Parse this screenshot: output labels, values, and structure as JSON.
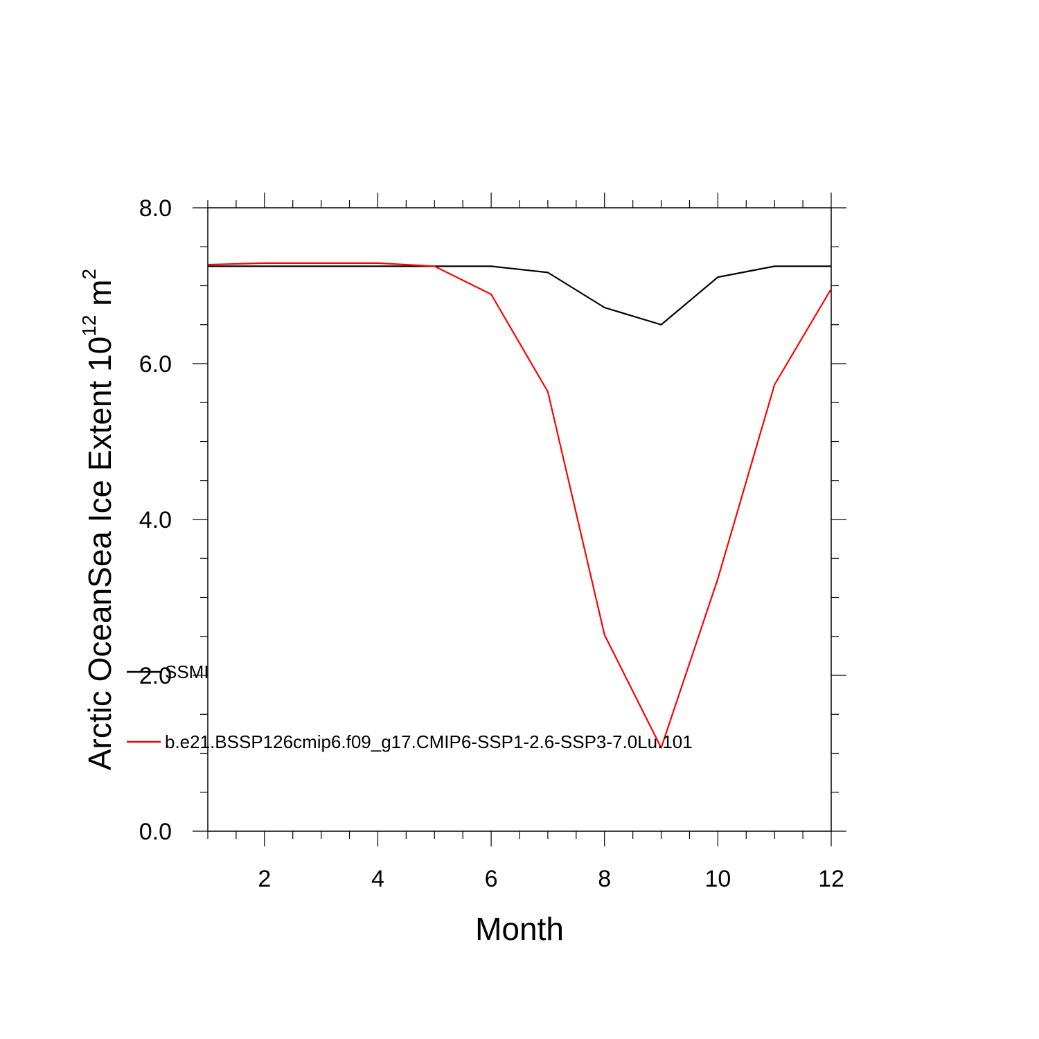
{
  "chart_data": {
    "type": "line",
    "xlabel": "Month",
    "ylabel_main": "Arctic OceanSea Ice Extent 10",
    "ylabel_sup": "12",
    "ylabel_unit": " m",
    "ylabel_unit_sup": "2",
    "xlim": [
      1,
      12
    ],
    "ylim": [
      0,
      8
    ],
    "x_ticks": [
      2,
      4,
      6,
      8,
      10,
      12
    ],
    "x_tick_labels": [
      "2",
      "4",
      "6",
      "8",
      "10",
      "12"
    ],
    "y_ticks": [
      0,
      2,
      4,
      6,
      8
    ],
    "y_tick_labels": [
      "0.0",
      "2.0",
      "4.0",
      "6.0",
      "8.0"
    ],
    "grid": false,
    "legend_position": "bottom-left",
    "x": [
      1,
      2,
      3,
      4,
      5,
      6,
      7,
      8,
      9,
      10,
      11,
      12
    ],
    "series": [
      {
        "name": "SSMI",
        "color": "#000000",
        "values": [
          7.25,
          7.25,
          7.25,
          7.25,
          7.25,
          7.25,
          7.17,
          6.72,
          6.5,
          7.11,
          7.25,
          7.25
        ]
      },
      {
        "name": "b.e21.BSSP126cmip6.f09_g17.CMIP6-SSP1-2.6-SSP3-7.0Lu.101",
        "color": "#ff0000",
        "values": [
          7.27,
          7.29,
          7.29,
          7.29,
          7.25,
          6.89,
          5.64,
          2.52,
          1.07,
          3.24,
          5.73,
          6.96
        ]
      }
    ]
  }
}
